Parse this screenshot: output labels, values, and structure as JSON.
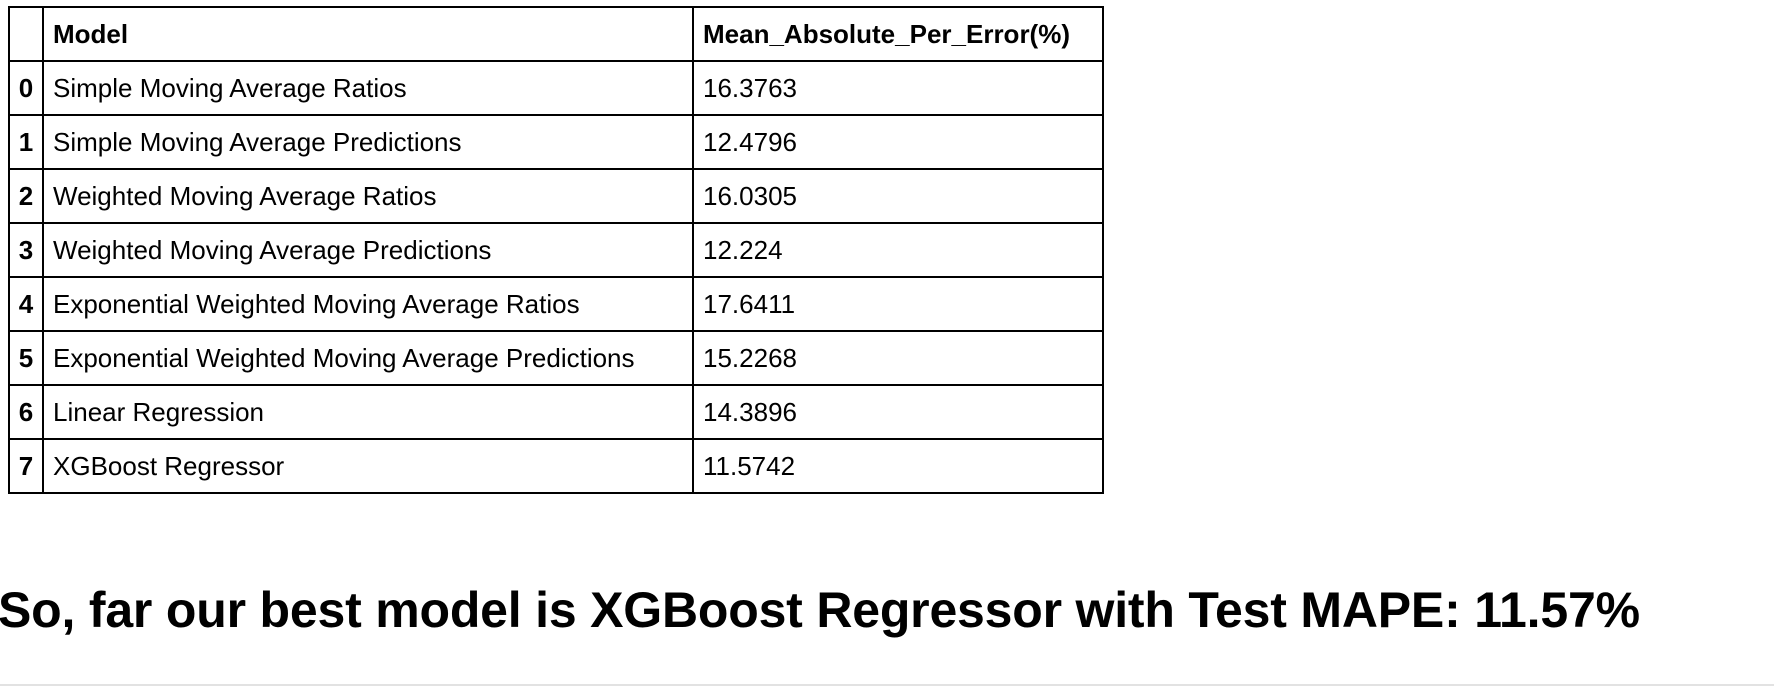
{
  "results_table": {
    "index_header": "",
    "columns": [
      "Model",
      "Mean_Absolute_Per_Error(%)"
    ],
    "rows": [
      {
        "index": "0",
        "model": "Simple Moving Average Ratios",
        "mape": "16.3763"
      },
      {
        "index": "1",
        "model": "Simple Moving Average Predictions",
        "mape": "12.4796"
      },
      {
        "index": "2",
        "model": "Weighted Moving Average Ratios",
        "mape": "16.0305"
      },
      {
        "index": "3",
        "model": "Weighted Moving Average Predictions",
        "mape": "12.224"
      },
      {
        "index": "4",
        "model": "Exponential Weighted Moving Average Ratios",
        "mape": "17.6411"
      },
      {
        "index": "5",
        "model": "Exponential Weighted Moving Average Predictions",
        "mape": "15.2268"
      },
      {
        "index": "6",
        "model": "Linear Regression",
        "mape": "14.3896"
      },
      {
        "index": "7",
        "model": "XGBoost Regressor",
        "mape": "11.5742"
      }
    ]
  },
  "summary": {
    "heading": "So, far our best model is XGBoost Regressor with Test MAPE: 11.57%"
  },
  "colors": {
    "border": "#000000",
    "separator": "#e2e2e2",
    "background": "#ffffff"
  }
}
